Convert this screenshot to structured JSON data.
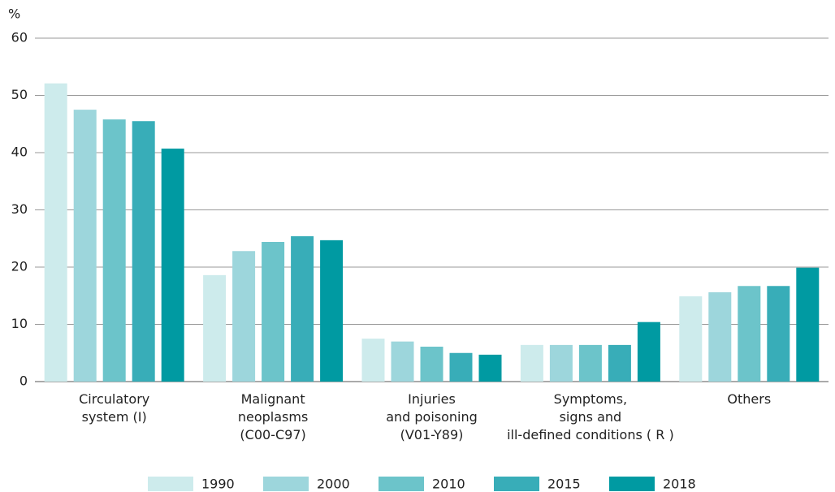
{
  "chart_data": {
    "type": "bar",
    "y_axis_label": "%",
    "categories": [
      "Circulatory\nsystem (I)",
      "Malignant\nneoplasms\n(C00-C97)",
      "Injuries\nand poisoning\n(V01-Y89)",
      "Symptoms,\nsigns and\nill-defined conditions ( R )",
      "Others"
    ],
    "series": [
      {
        "name": "1990",
        "color": "#cdebec",
        "values": [
          52.1,
          18.6,
          7.5,
          6.4,
          14.9
        ]
      },
      {
        "name": "2000",
        "color": "#9dd6dc",
        "values": [
          47.5,
          22.8,
          7.0,
          6.4,
          15.6
        ]
      },
      {
        "name": "2010",
        "color": "#6cc4ca",
        "values": [
          45.8,
          24.4,
          6.1,
          6.4,
          16.7
        ]
      },
      {
        "name": "2015",
        "color": "#38adb8",
        "values": [
          45.5,
          25.4,
          5.0,
          6.4,
          16.7
        ]
      },
      {
        "name": "2018",
        "color": "#009aa2",
        "values": [
          40.7,
          24.7,
          4.7,
          10.4,
          19.9
        ]
      }
    ],
    "ylim": [
      0,
      60
    ],
    "yticks": [
      0,
      10,
      20,
      30,
      40,
      50,
      60
    ],
    "grid": true,
    "legend": "bottom"
  }
}
